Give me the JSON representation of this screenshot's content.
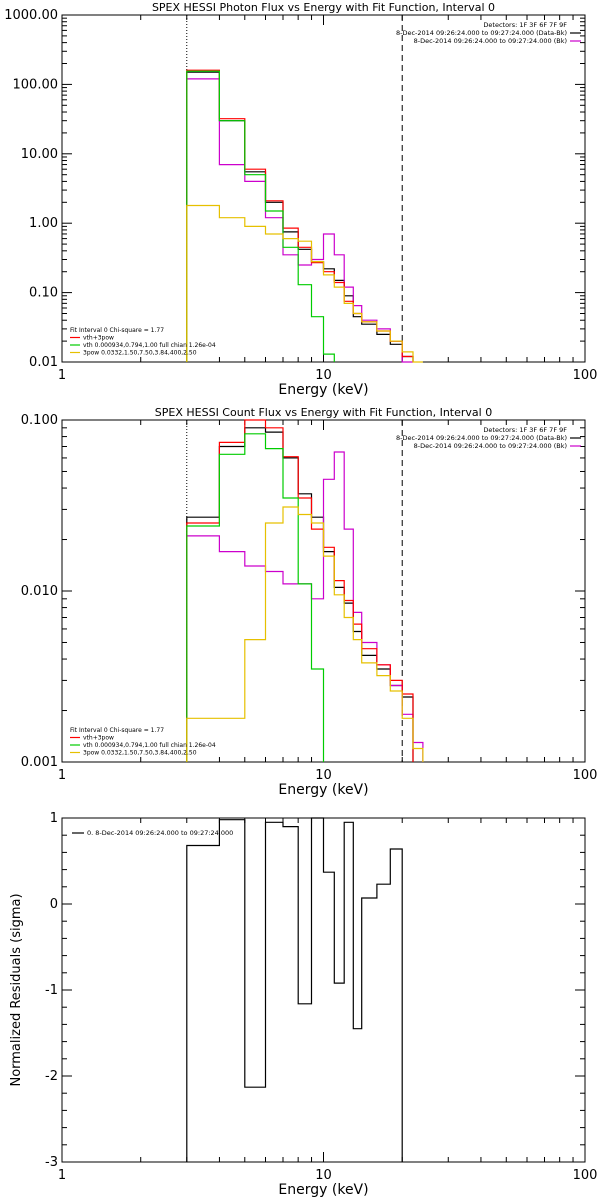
{
  "chart_data": [
    {
      "type": "line",
      "title": "SPEX HESSI Photon Flux vs Energy with Fit Function, Interval 0",
      "xlabel": "Energy (keV)",
      "ylabel": "",
      "xscale": "log",
      "yscale": "log",
      "xlim": [
        1,
        100
      ],
      "ylim": [
        0.01,
        1000
      ],
      "x_ticks": [
        1,
        10,
        100
      ],
      "x_tick_labels": [
        "1",
        "10",
        "100"
      ],
      "y_ticks": [
        0.01,
        0.1,
        1,
        10,
        100,
        1000
      ],
      "y_tick_labels": [
        "0.01",
        "0.10",
        "1.00",
        "10.00",
        "100.00",
        "1000.00"
      ],
      "vlines": [
        {
          "x": 3,
          "style": "dotted"
        },
        {
          "x": 20,
          "style": "dashed"
        }
      ],
      "legend_top": [
        "Detectors: 1F 3F 6F 7F 9F",
        "8-Dec-2014 09:26:24.000 to 09:27:24.000 (Data-Bk)",
        "8-Dec-2014 09:26:24.000 to 09:27:24.000 (Bk)"
      ],
      "legend_bottom": [
        "Fit Interval  0    Chi-square = 1.77",
        "vth+3pow",
        "vth 0.000934,0.794,1.00  full chian 1.26e-04",
        "3pow 0.0332,1.50,7.50,3.84,400,2.50"
      ],
      "x_edges": [
        3,
        4,
        5,
        6,
        7,
        8,
        9,
        10,
        11,
        12,
        13,
        14,
        16,
        18,
        20,
        22,
        24
      ],
      "series": [
        {
          "name": "8-Dec-2014 09:26:24.000 to 09:27:24.000 (Data-Bk)",
          "color": "#000000",
          "values": [
            150,
            30,
            5.5,
            2.0,
            0.75,
            0.42,
            0.28,
            0.22,
            0.15,
            0.09,
            0.045,
            0.035,
            0.025,
            0.018,
            0.012,
            null
          ]
        },
        {
          "name": "8-Dec-2014 09:26:24.000 to 09:27:24.000 (Bk)",
          "color": "#cc00cc",
          "values": [
            120,
            7.0,
            4.0,
            1.2,
            0.35,
            0.25,
            0.3,
            0.7,
            0.35,
            0.12,
            0.065,
            0.04,
            0.03,
            0.02,
            0.01,
            null
          ]
        },
        {
          "name": "vth+3pow",
          "color": "#ff0000",
          "values": [
            160,
            32,
            6.0,
            2.1,
            0.85,
            0.45,
            0.27,
            0.2,
            0.14,
            0.075,
            0.05,
            0.038,
            0.028,
            0.02,
            0.012,
            null
          ]
        },
        {
          "name": "vth 0.000934,0.794,1.00  full chian 1.26e-04",
          "color": "#00cc00",
          "values": [
            155,
            30,
            5.0,
            1.5,
            0.45,
            0.13,
            0.045,
            0.013,
            null,
            null,
            null,
            null,
            null,
            null,
            null,
            null
          ]
        },
        {
          "name": "3pow 0.0332,1.50,7.50,3.84,400,2.50",
          "color": "#e6c000",
          "values": [
            1.8,
            1.2,
            0.9,
            0.7,
            0.6,
            0.55,
            0.28,
            0.18,
            0.12,
            0.07,
            0.05,
            0.038,
            0.028,
            0.02,
            0.014,
            0.01
          ]
        }
      ]
    },
    {
      "type": "line",
      "title": "SPEX HESSI Count Flux vs Energy with Fit Function, Interval 0",
      "xlabel": "Energy (keV)",
      "ylabel": "",
      "xscale": "log",
      "yscale": "log",
      "xlim": [
        1,
        100
      ],
      "ylim": [
        0.001,
        0.1
      ],
      "x_ticks": [
        1,
        10,
        100
      ],
      "x_tick_labels": [
        "1",
        "10",
        "100"
      ],
      "y_ticks": [
        0.001,
        0.01,
        0.1
      ],
      "y_tick_labels": [
        "0.001",
        "0.010",
        "0.100"
      ],
      "vlines": [
        {
          "x": 3,
          "style": "dotted"
        },
        {
          "x": 20,
          "style": "dashed"
        }
      ],
      "legend_top": [
        "Detectors: 1F 3F 6F 7F 9F",
        "8-Dec-2014 09:26:24.000 to 09:27:24.000 (Data-Bk)",
        "8-Dec-2014 09:26:24.000 to 09:27:24.000 (Bk)"
      ],
      "legend_bottom": [
        "Fit Interval  0    Chi-square = 1.77",
        "vth+3pow",
        "vth 0.000934,0.794,1.00  full chian 1.26e-04",
        "3pow 0.0332,1.50,7.50,3.84,400,2.50"
      ],
      "x_edges": [
        3,
        4,
        5,
        6,
        7,
        8,
        9,
        10,
        11,
        12,
        13,
        14,
        16,
        18,
        20,
        22,
        24
      ],
      "series": [
        {
          "name": "8-Dec-2014 09:26:24.000 to 09:27:24.000 (Data-Bk)",
          "color": "#000000",
          "values": [
            0.027,
            0.07,
            0.09,
            0.085,
            0.06,
            0.037,
            0.027,
            0.017,
            0.0105,
            0.0085,
            0.0058,
            0.0042,
            0.0035,
            0.0028,
            0.0024,
            null
          ]
        },
        {
          "name": "8-Dec-2014 09:26:24.000 to 09:27:24.000 (Bk)",
          "color": "#cc00cc",
          "values": [
            0.021,
            0.017,
            0.014,
            0.013,
            0.011,
            0.011,
            0.009,
            0.045,
            0.065,
            0.023,
            0.0075,
            0.005,
            0.0037,
            0.0028,
            0.0019,
            0.0013
          ]
        },
        {
          "name": "vth+3pow",
          "color": "#ff0000",
          "values": [
            0.025,
            0.074,
            0.1,
            0.09,
            0.061,
            0.035,
            0.023,
            0.018,
            0.0115,
            0.0088,
            0.0064,
            0.0046,
            0.0037,
            0.003,
            0.0025,
            null
          ]
        },
        {
          "name": "vth 0.000934,0.794,1.00  full chian 1.26e-04",
          "color": "#00cc00",
          "values": [
            0.024,
            0.063,
            0.083,
            0.068,
            0.035,
            0.011,
            0.0035,
            null,
            null,
            null,
            null,
            null,
            null,
            null,
            null,
            null
          ]
        },
        {
          "name": "3pow 0.0332,1.50,7.50,3.84,400,2.50",
          "color": "#e6c000",
          "values": [
            0.0018,
            0.0018,
            0.0052,
            0.025,
            0.031,
            0.028,
            0.025,
            0.016,
            0.0095,
            0.007,
            0.0052,
            0.0038,
            0.0032,
            0.0026,
            0.0018,
            0.0012
          ]
        }
      ]
    },
    {
      "type": "line",
      "title": "",
      "xlabel": "Energy (keV)",
      "ylabel": "Normalized Residuals (sigma)",
      "xscale": "log",
      "yscale": "linear",
      "xlim": [
        1,
        100
      ],
      "ylim": [
        -3,
        1
      ],
      "x_ticks": [
        1,
        10,
        100
      ],
      "x_tick_labels": [
        "1",
        "10",
        "100"
      ],
      "y_ticks": [
        -3,
        -2,
        -1,
        0,
        1
      ],
      "y_tick_labels": [
        "-3",
        "-2",
        "-1",
        "0",
        "1"
      ],
      "legend_top": [
        "0.  8-Dec-2014 09:26:24.000 to 09:27:24.000"
      ],
      "x_edges": [
        3,
        4,
        5,
        6,
        7,
        8,
        9,
        10,
        11,
        12,
        13,
        14,
        16,
        18,
        20
      ],
      "series": [
        {
          "name": "0.  8-Dec-2014 09:26:24.000 to 09:27:24.000",
          "color": "#000000",
          "values": [
            0.68,
            0.98,
            -2.13,
            0.95,
            0.9,
            -1.16,
            1.0,
            0.37,
            -0.92,
            0.95,
            -1.45,
            0.07,
            0.23,
            0.64
          ]
        }
      ]
    }
  ]
}
